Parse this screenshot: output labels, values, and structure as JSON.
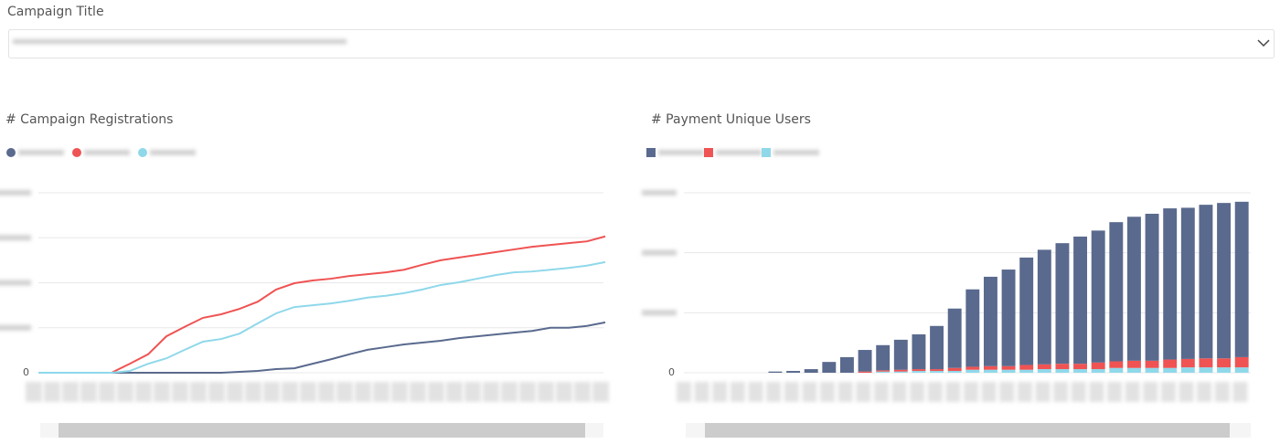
{
  "filter_label": "Campaign Title",
  "chart_data": [
    {
      "type": "line",
      "title": "# Campaign Registrations",
      "categories": [
        null,
        null,
        null,
        null,
        null,
        null,
        null,
        null,
        null,
        null,
        null,
        null,
        null,
        null,
        null,
        null,
        null,
        null,
        null,
        null,
        null,
        null,
        null,
        null,
        null,
        null,
        null,
        null,
        null,
        null,
        null,
        null
      ],
      "series": [
        {
          "color": "#5a6a8e",
          "values": [
            0,
            0,
            0,
            0,
            0,
            0,
            0,
            0,
            0,
            0,
            0,
            0.02,
            0.04,
            0.08,
            0.1,
            0.2,
            0.3,
            0.41,
            0.51,
            0.57,
            0.63,
            0.67,
            0.71,
            0.77,
            0.81,
            0.85,
            0.89,
            0.93,
            1.0,
            1.0,
            1.04,
            1.12
          ]
        },
        {
          "color": "#ef5353",
          "values": [
            0,
            0,
            0,
            0,
            0,
            0.2,
            0.41,
            0.81,
            1.02,
            1.22,
            1.3,
            1.42,
            1.58,
            1.85,
            1.99,
            2.05,
            2.09,
            2.15,
            2.19,
            2.23,
            2.29,
            2.4,
            2.5,
            2.56,
            2.62,
            2.68,
            2.74,
            2.8,
            2.84,
            2.88,
            2.92,
            3.03
          ]
        },
        {
          "color": "#8fd8ea",
          "values": [
            0,
            0,
            0,
            0,
            0,
            0.04,
            0.2,
            0.32,
            0.51,
            0.69,
            0.75,
            0.87,
            1.1,
            1.32,
            1.46,
            1.5,
            1.54,
            1.6,
            1.67,
            1.71,
            1.77,
            1.85,
            1.95,
            2.01,
            2.09,
            2.17,
            2.23,
            2.25,
            2.29,
            2.33,
            2.38,
            2.46
          ]
        }
      ],
      "ylim": [
        0,
        4
      ],
      "yticks": [
        0,
        {
          "value": 1,
          "label": null
        },
        {
          "value": 2,
          "label": null
        },
        {
          "value": 3,
          "label": null
        },
        {
          "value": 4,
          "label": null
        }
      ],
      "grid": true
    },
    {
      "type": "bar",
      "stacked": true,
      "title": "# Payment Unique Users",
      "categories": [
        null,
        null,
        null,
        null,
        null,
        null,
        null,
        null,
        null,
        null,
        null,
        null,
        null,
        null,
        null,
        null,
        null,
        null,
        null,
        null,
        null,
        null,
        null,
        null,
        null,
        null,
        null,
        null,
        null,
        null,
        null,
        null
      ],
      "series": [
        {
          "color": "#5a6a8e",
          "values": [
            0,
            0,
            0,
            0,
            0,
            0.02,
            0.03,
            0.06,
            0.18,
            0.26,
            0.36,
            0.42,
            0.5,
            0.58,
            0.72,
            0.99,
            1.29,
            1.49,
            1.61,
            1.79,
            1.91,
            2.01,
            2.12,
            2.2,
            2.32,
            2.4,
            2.45,
            2.52,
            2.52,
            2.56,
            2.59,
            2.59
          ]
        },
        {
          "color": "#ef5353",
          "values": [
            0,
            0,
            0,
            0,
            0,
            0,
            0,
            0,
            0,
            0,
            0.02,
            0.02,
            0.03,
            0.03,
            0.03,
            0.05,
            0.05,
            0.06,
            0.06,
            0.08,
            0.08,
            0.09,
            0.09,
            0.11,
            0.11,
            0.12,
            0.12,
            0.14,
            0.14,
            0.15,
            0.15,
            0.17
          ]
        },
        {
          "color": "#8fd8ea",
          "values": [
            0,
            0,
            0,
            0,
            0,
            0,
            0,
            0,
            0,
            0,
            0,
            0.02,
            0.02,
            0.03,
            0.03,
            0.03,
            0.05,
            0.05,
            0.05,
            0.05,
            0.06,
            0.06,
            0.06,
            0.06,
            0.08,
            0.08,
            0.08,
            0.08,
            0.09,
            0.09,
            0.09,
            0.09
          ]
        }
      ],
      "ylim": [
        0,
        3
      ],
      "yticks": [
        0,
        {
          "value": 1,
          "label": null
        },
        {
          "value": 2,
          "label": null
        },
        {
          "value": 3,
          "label": null
        }
      ],
      "grid": true
    }
  ]
}
